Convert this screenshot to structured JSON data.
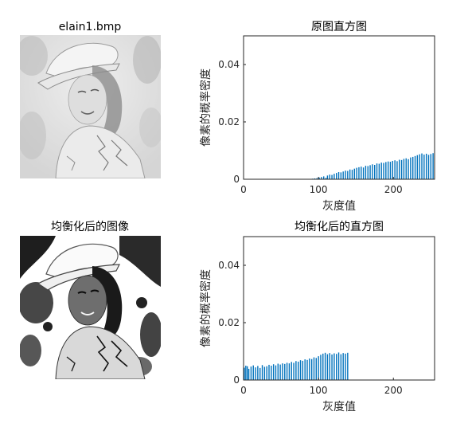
{
  "images": [
    {
      "title": "elain1.bmp",
      "variant": "original-photo-grayscale"
    },
    {
      "title": "均衡化后的图像",
      "variant": "equalized-photo-grayscale"
    }
  ],
  "colors": {
    "bar": "#0072bd",
    "axis": "#262626",
    "background": "#ffffff"
  },
  "chart_data": [
    {
      "type": "bar",
      "title": "原图直方图",
      "xlabel": "灰度值",
      "ylabel": "像素的概率密度",
      "xlim": [
        0,
        255
      ],
      "ylim": [
        0,
        0.05
      ],
      "xticks": [
        0,
        100,
        200
      ],
      "yticks": [
        0,
        0.02,
        0.04
      ],
      "ytick_labels": [
        "0",
        "0.02",
        "0.04"
      ],
      "grid": false,
      "x": [
        92,
        95,
        98,
        101,
        104,
        107,
        110,
        112,
        115,
        118,
        121,
        124,
        127,
        130,
        133,
        136,
        139,
        142,
        145,
        148,
        151,
        154,
        157,
        160,
        163,
        166,
        169,
        172,
        175,
        178,
        181,
        184,
        187,
        190,
        193,
        196,
        199,
        202,
        205,
        208,
        211,
        214,
        217,
        220,
        223,
        226,
        229,
        232,
        235,
        238,
        241,
        244,
        247,
        250,
        253
      ],
      "values": [
        0.0002,
        0.0003,
        0.0004,
        0.0006,
        0.0008,
        0.001,
        0.0005,
        0.0013,
        0.0016,
        0.0015,
        0.0019,
        0.0022,
        0.0025,
        0.0024,
        0.0027,
        0.003,
        0.0029,
        0.0034,
        0.0033,
        0.0037,
        0.004,
        0.0042,
        0.0044,
        0.0041,
        0.0047,
        0.0046,
        0.0049,
        0.0052,
        0.005,
        0.0055,
        0.0054,
        0.0058,
        0.0057,
        0.006,
        0.0062,
        0.0061,
        0.0064,
        0.0066,
        0.0063,
        0.0068,
        0.0067,
        0.0071,
        0.0073,
        0.007,
        0.0076,
        0.0078,
        0.0081,
        0.0084,
        0.0087,
        0.009,
        0.0086,
        0.0089,
        0.0085,
        0.0088,
        0.0091
      ]
    },
    {
      "type": "bar",
      "title": "均衡化后的直方图",
      "xlabel": "灰度值",
      "ylabel": "像素的概率密度",
      "xlim": [
        0,
        255
      ],
      "ylim": [
        0,
        0.05
      ],
      "xticks": [
        0,
        100,
        200
      ],
      "yticks": [
        0,
        0.02,
        0.04
      ],
      "ytick_labels": [
        "0",
        "0.02",
        "0.04"
      ],
      "grid": false,
      "x": [
        1,
        3,
        5,
        7,
        10,
        13,
        16,
        19,
        22,
        25,
        28,
        31,
        34,
        37,
        40,
        43,
        46,
        49,
        52,
        55,
        58,
        61,
        64,
        67,
        70,
        73,
        76,
        79,
        82,
        85,
        88,
        91,
        94,
        97,
        100,
        103,
        106,
        109,
        112,
        115,
        118,
        121,
        124,
        127,
        130,
        133,
        136,
        139
      ],
      "values": [
        0.0043,
        0.005,
        0.0048,
        0.0039,
        0.0047,
        0.0051,
        0.0044,
        0.0049,
        0.0042,
        0.0052,
        0.0046,
        0.0048,
        0.0053,
        0.005,
        0.0055,
        0.0051,
        0.0057,
        0.0054,
        0.0058,
        0.0056,
        0.006,
        0.0058,
        0.0063,
        0.006,
        0.0066,
        0.0064,
        0.0069,
        0.0067,
        0.0072,
        0.007,
        0.0075,
        0.0073,
        0.0079,
        0.0077,
        0.0083,
        0.0088,
        0.0092,
        0.0095,
        0.009,
        0.0094,
        0.0089,
        0.0093,
        0.0091,
        0.0096,
        0.009,
        0.0094,
        0.0092,
        0.0095
      ]
    }
  ]
}
